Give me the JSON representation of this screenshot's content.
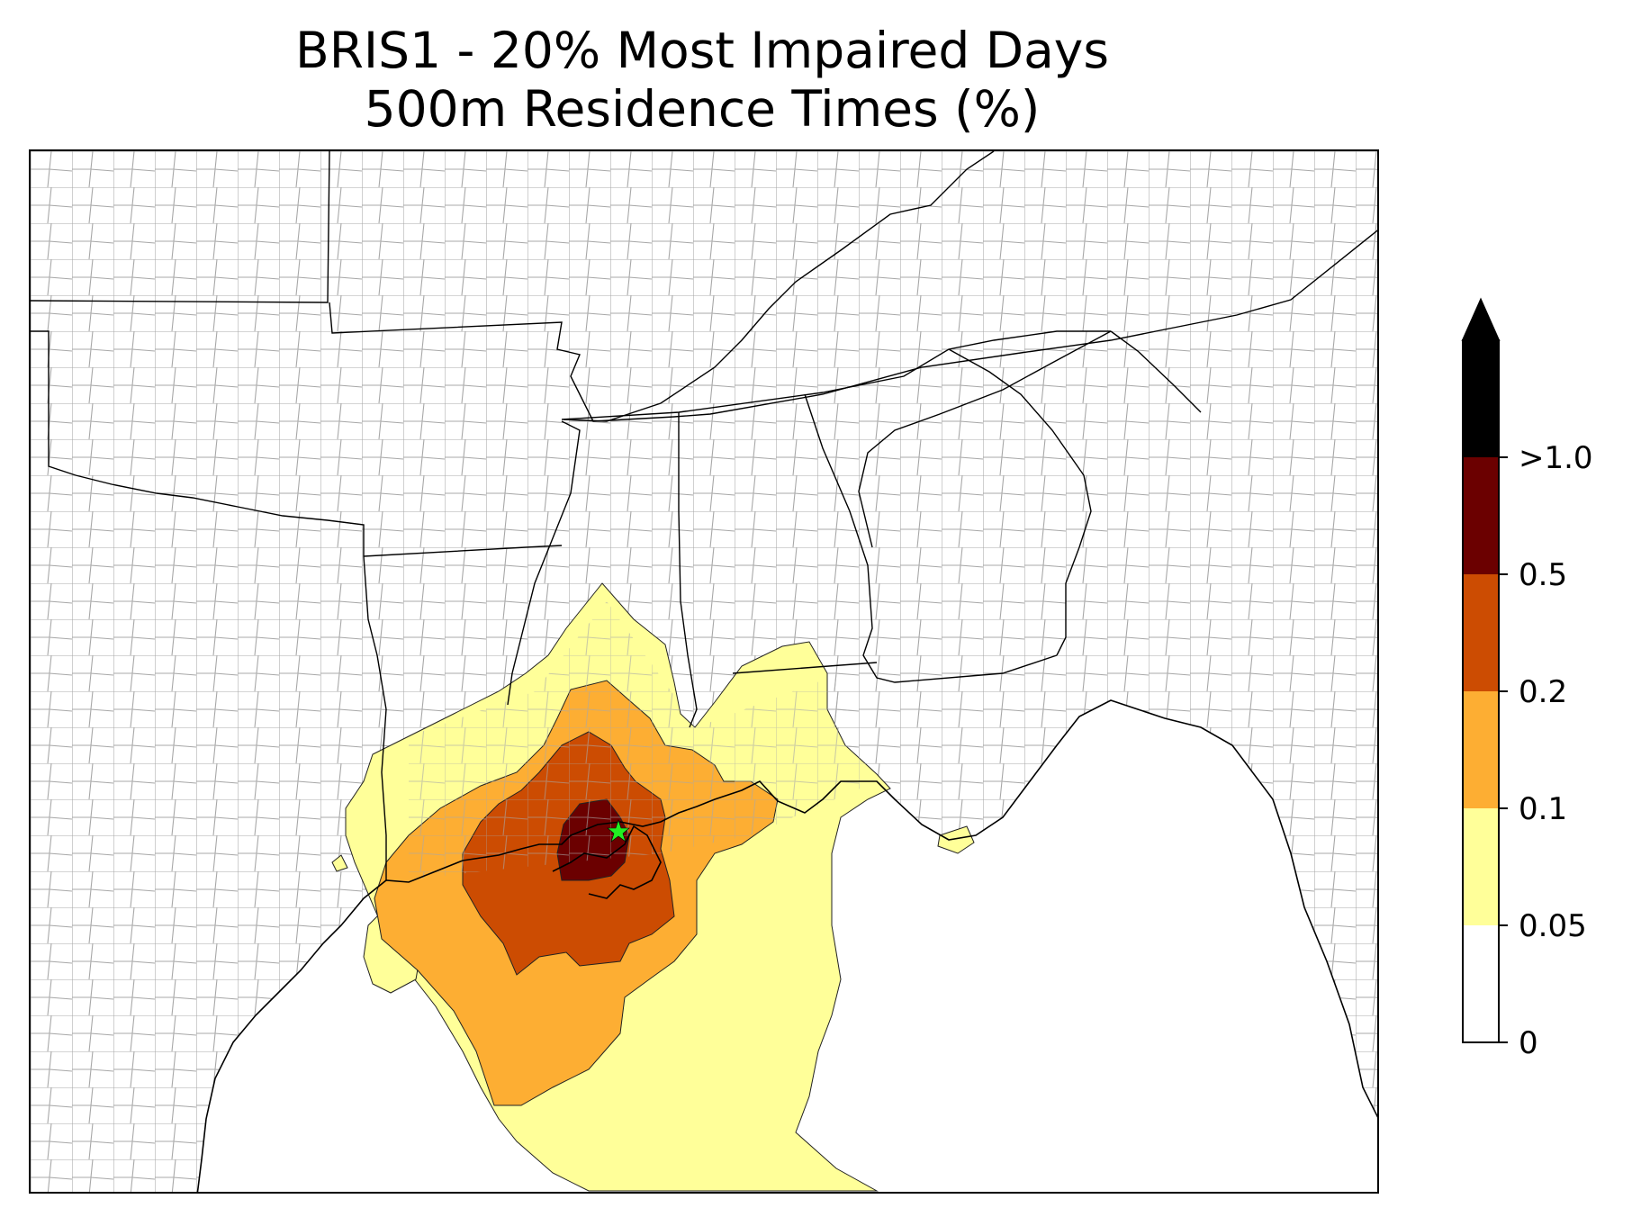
{
  "title": {
    "line1": "BRIS1 - 20% Most Impaired Days",
    "line2": "500m Residence Times (%)"
  },
  "site_marker": {
    "icon": "star",
    "color": "#22ee22"
  },
  "legend": {
    "labels": [
      "0",
      "0.05",
      "0.1",
      "0.2",
      "0.5",
      ">1.0"
    ],
    "colors": [
      "#ffffff",
      "#ffff99",
      "#fdae33",
      "#cc4c02",
      "#6b0000",
      "#000000"
    ],
    "extend": "max"
  },
  "map": {
    "county_line_color": "#a8a8a8",
    "state_line_color": "#000000"
  }
}
